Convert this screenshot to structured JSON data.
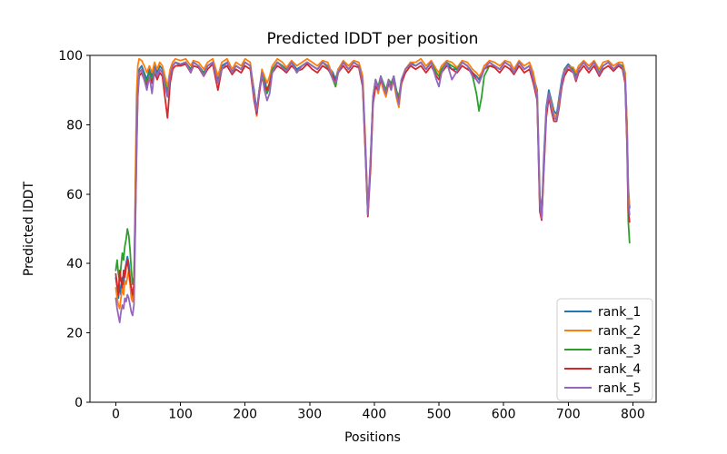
{
  "figure": {
    "title": "Predicted lDDT per position",
    "background_color": "#ffffff",
    "text_color": "#000000",
    "frame_color": "#000000",
    "legend_border_color": "#cccccc"
  },
  "chart_data": {
    "type": "line",
    "title": "Predicted lDDT per position",
    "xlabel": "Positions",
    "ylabel": "Predicted lDDT",
    "xlim": [
      -40,
      836
    ],
    "ylim": [
      0,
      100
    ],
    "xticks": [
      0,
      100,
      200,
      300,
      400,
      500,
      600,
      700,
      800
    ],
    "yticks": [
      0,
      20,
      40,
      60,
      80,
      100
    ],
    "grid": false,
    "legend": {
      "location": "lower right"
    },
    "x": [
      0,
      2,
      4,
      6,
      8,
      10,
      12,
      14,
      16,
      18,
      20,
      22,
      24,
      26,
      28,
      30,
      32,
      34,
      36,
      40,
      44,
      48,
      52,
      56,
      60,
      64,
      68,
      72,
      76,
      80,
      84,
      88,
      92,
      100,
      108,
      116,
      120,
      128,
      136,
      142,
      150,
      158,
      164,
      172,
      180,
      186,
      194,
      200,
      208,
      214,
      218,
      222,
      226,
      230,
      234,
      238,
      242,
      250,
      258,
      264,
      272,
      280,
      288,
      296,
      304,
      312,
      320,
      328,
      336,
      340,
      344,
      352,
      360,
      368,
      376,
      382,
      386,
      390,
      394,
      398,
      402,
      406,
      410,
      414,
      418,
      422,
      426,
      430,
      434,
      438,
      442,
      448,
      456,
      464,
      472,
      480,
      488,
      496,
      500,
      504,
      512,
      520,
      528,
      536,
      544,
      552,
      558,
      562,
      566,
      570,
      578,
      586,
      594,
      602,
      610,
      616,
      624,
      632,
      640,
      646,
      652,
      656,
      659,
      662,
      666,
      670,
      674,
      678,
      682,
      686,
      690,
      694,
      700,
      708,
      712,
      716,
      724,
      732,
      740,
      748,
      754,
      762,
      770,
      778,
      784,
      788,
      791,
      793,
      795
    ],
    "series": [
      {
        "name": "rank_1",
        "color": "#1f77b4",
        "values": [
          36,
          33,
          30,
          34,
          31,
          36,
          34,
          38,
          40,
          42,
          40,
          36,
          32,
          30,
          33,
          55,
          80,
          93,
          96,
          97,
          95,
          93,
          96,
          94,
          97,
          95,
          97,
          96,
          93,
          90,
          95,
          97,
          98,
          97,
          98,
          96,
          98,
          97,
          95,
          97,
          98,
          93,
          97,
          98,
          95.5,
          97,
          96,
          98,
          97,
          90,
          84,
          90,
          95,
          93,
          90,
          92,
          96,
          98,
          97,
          96,
          98,
          96,
          97,
          98,
          97,
          96,
          98,
          97,
          95,
          93,
          96,
          98,
          96,
          98,
          97,
          93,
          75,
          55,
          70,
          88,
          93,
          90,
          94,
          91,
          89,
          93,
          91,
          94,
          90,
          87,
          93,
          96,
          98,
          97,
          98,
          96,
          98,
          95,
          94,
          96,
          98,
          96,
          96,
          98,
          97,
          95,
          94,
          93,
          95,
          97,
          98,
          97,
          96,
          98,
          97,
          95,
          98,
          96,
          97,
          94,
          90,
          60,
          54,
          70,
          85,
          90,
          87,
          84,
          83,
          88,
          93,
          96,
          97.5,
          96,
          94,
          96,
          98,
          96,
          98,
          95,
          97,
          98,
          96,
          97.5,
          97,
          95,
          80,
          62,
          56
        ]
      },
      {
        "name": "rank_2",
        "color": "#ff7f0e",
        "values": [
          33,
          30,
          28,
          27,
          30,
          33,
          31,
          35,
          34,
          36,
          38,
          34,
          30,
          29,
          32,
          60,
          88,
          97,
          99,
          98.5,
          97,
          95,
          97,
          95,
          98,
          96,
          98,
          97,
          94,
          91,
          96,
          98,
          99,
          98.5,
          99,
          97,
          98.5,
          98,
          96,
          98,
          99,
          94,
          98,
          99,
          96,
          98,
          97,
          99,
          98,
          89,
          82.5,
          89,
          96,
          94,
          92,
          94,
          97,
          99,
          98,
          96.5,
          98.5,
          97,
          98,
          99,
          98,
          97,
          98.5,
          98,
          94,
          91,
          96,
          98.5,
          97,
          98.5,
          98,
          94,
          76,
          55,
          68,
          87,
          92,
          89,
          93,
          90,
          88,
          92,
          90,
          93,
          88,
          85,
          92,
          96,
          98,
          98,
          99,
          97,
          98.5,
          96,
          95,
          97,
          98.5,
          98,
          96.5,
          98.5,
          98,
          96,
          95,
          94,
          95,
          97,
          98.5,
          98,
          97,
          98.5,
          98,
          96,
          98.5,
          97,
          98,
          95,
          89,
          58,
          53.5,
          68,
          84,
          89,
          86,
          83,
          82,
          87,
          92,
          95.5,
          97,
          96.5,
          95,
          97,
          98.5,
          97,
          98.5,
          96,
          98,
          98.5,
          97,
          98,
          98,
          95,
          80,
          60,
          57
        ]
      },
      {
        "name": "rank_3",
        "color": "#2ca02c",
        "values": [
          38,
          41,
          37,
          35,
          39,
          43,
          41,
          45,
          47,
          50,
          48,
          44,
          38,
          34,
          36,
          52,
          75,
          90,
          95,
          96,
          94,
          92,
          95,
          93,
          96,
          94,
          96,
          95,
          92,
          89,
          94,
          97,
          98,
          97.5,
          98,
          95.5,
          98,
          97,
          94.5,
          97,
          98,
          92,
          96,
          98,
          95,
          97,
          96,
          98,
          97,
          88,
          83,
          90,
          95,
          92,
          89,
          91,
          96,
          98,
          97,
          95.5,
          98,
          95,
          97,
          98,
          97,
          96,
          98,
          96.5,
          93,
          91,
          95,
          98,
          96,
          98,
          97,
          92,
          73,
          54,
          69,
          88,
          93,
          91,
          94,
          92,
          90,
          93,
          92,
          94,
          90,
          88,
          93,
          96,
          97.5,
          97,
          98,
          96,
          98,
          95,
          94,
          96,
          98,
          97,
          96,
          98,
          97,
          94,
          89,
          84,
          88,
          94,
          97,
          97,
          96,
          98,
          97,
          95,
          98,
          96,
          97,
          93,
          88,
          57,
          53,
          67,
          83,
          88,
          85,
          82,
          81.5,
          86,
          91,
          95,
          97,
          95.5,
          93,
          96,
          98,
          96,
          98,
          95,
          97,
          98,
          96,
          97.5,
          97,
          93,
          75,
          52,
          46
        ]
      },
      {
        "name": "rank_4",
        "color": "#d62728",
        "values": [
          37,
          34,
          31,
          38,
          35,
          33,
          38,
          36,
          39,
          41,
          38,
          35,
          33,
          31,
          34,
          50,
          72,
          88,
          94,
          95,
          93,
          91,
          94,
          92,
          95,
          93,
          95,
          94,
          88,
          82,
          92,
          96,
          97,
          97,
          97.5,
          95,
          97,
          96.5,
          94,
          96,
          97.5,
          90,
          96,
          97,
          94.5,
          96,
          95,
          97,
          96,
          87,
          83,
          89,
          94,
          91,
          90,
          92,
          95,
          97,
          96,
          95,
          97,
          95.5,
          96,
          97.5,
          96,
          95,
          97,
          96,
          94,
          92,
          95,
          97,
          95,
          97,
          96.5,
          91,
          72,
          53.5,
          67,
          86,
          91,
          90,
          93,
          91,
          89,
          92,
          91,
          93,
          89,
          87,
          92,
          95,
          97,
          96,
          97,
          95,
          97,
          94,
          93,
          95,
          97,
          96,
          95,
          97,
          96,
          95,
          93,
          92,
          94,
          96,
          97,
          96.5,
          95,
          97,
          96,
          94.5,
          97,
          95,
          96,
          92,
          87,
          55,
          52.5,
          66,
          82,
          88,
          84,
          81,
          81,
          85,
          91,
          94,
          96,
          95,
          92.5,
          95,
          97,
          95,
          97,
          94,
          96,
          97,
          95.5,
          97,
          96,
          92,
          74,
          55,
          52
        ]
      },
      {
        "name": "rank_5",
        "color": "#9467bd",
        "values": [
          30,
          27,
          25,
          23,
          26,
          28,
          27,
          30,
          29,
          31,
          30,
          28,
          26,
          25,
          28,
          48,
          70,
          89,
          95,
          96,
          93,
          90,
          94,
          89,
          96,
          94,
          96,
          95,
          91,
          88,
          94,
          97,
          98,
          97.5,
          98,
          95,
          98,
          97,
          94,
          97,
          98,
          92,
          96,
          98,
          95,
          97,
          96,
          98,
          97,
          88,
          84,
          90,
          95,
          90,
          87,
          89,
          95,
          98,
          96.5,
          95.5,
          98,
          95,
          97,
          98,
          97,
          96,
          98,
          97,
          93,
          92,
          95,
          98,
          96,
          98,
          97,
          92,
          74,
          54,
          70,
          88,
          93,
          90,
          94,
          91,
          89,
          93,
          90,
          94,
          89,
          86,
          93,
          96,
          97.5,
          97,
          98,
          96,
          98,
          93,
          91,
          95,
          98,
          93,
          95.5,
          98,
          97,
          94,
          93,
          92,
          94,
          96,
          98,
          97,
          96,
          98,
          97,
          95,
          98,
          96,
          97,
          93,
          88,
          57,
          53,
          68,
          84,
          89,
          85,
          82,
          81.5,
          86,
          92,
          95,
          97,
          95,
          93,
          96,
          98,
          96,
          98,
          94.5,
          97,
          98,
          96,
          97.5,
          96.5,
          93,
          76,
          58,
          54
        ]
      }
    ]
  }
}
